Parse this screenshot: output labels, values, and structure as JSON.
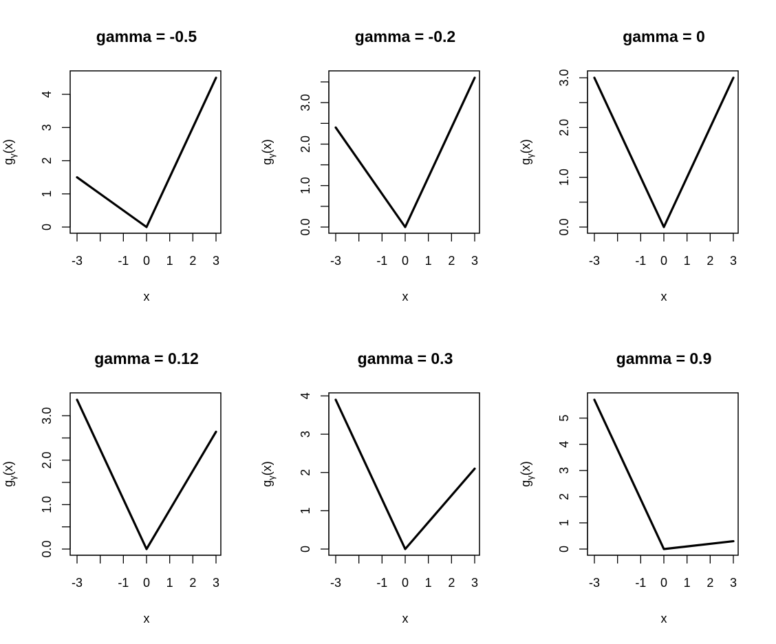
{
  "chart_data": [
    {
      "type": "line",
      "title": "gamma =  -0.5",
      "xlabel": "x",
      "ylabel": {
        "base": "g",
        "sub": "γ",
        "rest": "(x)"
      },
      "x": [
        -3,
        0,
        3
      ],
      "y": [
        1.5,
        0,
        4.5
      ],
      "x_ticks": [
        -3,
        -2,
        -1,
        0,
        1,
        2,
        3
      ],
      "x_tick_labels": [
        "-3",
        "",
        "-1",
        "0",
        "1",
        "2",
        "3"
      ],
      "y_ticks": [
        0,
        1,
        2,
        3,
        4
      ],
      "y_tick_labels": [
        "0",
        "1",
        "2",
        "3",
        "4"
      ],
      "ylim": [
        0,
        4.5
      ],
      "xlim": [
        -3,
        3
      ]
    },
    {
      "type": "line",
      "title": "gamma =  -0.2",
      "xlabel": "x",
      "ylabel": {
        "base": "g",
        "sub": "γ",
        "rest": "(x)"
      },
      "x": [
        -3,
        0,
        3
      ],
      "y": [
        2.4,
        0,
        3.6
      ],
      "x_ticks": [
        -3,
        -2,
        -1,
        0,
        1,
        2,
        3
      ],
      "x_tick_labels": [
        "-3",
        "",
        "-1",
        "0",
        "1",
        "2",
        "3"
      ],
      "y_ticks": [
        0,
        0.5,
        1,
        1.5,
        2,
        2.5,
        3,
        3.5
      ],
      "y_tick_labels": [
        "0.0",
        "",
        "1.0",
        "",
        "2.0",
        "",
        "3.0",
        ""
      ],
      "ylim": [
        0,
        3.6
      ],
      "xlim": [
        -3,
        3
      ]
    },
    {
      "type": "line",
      "title": "gamma =  0",
      "xlabel": "x",
      "ylabel": {
        "base": "g",
        "sub": "γ",
        "rest": "(x)"
      },
      "x": [
        -3,
        0,
        3
      ],
      "y": [
        3,
        0,
        3
      ],
      "x_ticks": [
        -3,
        -2,
        -1,
        0,
        1,
        2,
        3
      ],
      "x_tick_labels": [
        "-3",
        "",
        "-1",
        "0",
        "1",
        "2",
        "3"
      ],
      "y_ticks": [
        0,
        0.5,
        1,
        1.5,
        2,
        2.5,
        3
      ],
      "y_tick_labels": [
        "0.0",
        "",
        "1.0",
        "",
        "2.0",
        "",
        "3.0"
      ],
      "ylim": [
        0,
        3
      ],
      "xlim": [
        -3,
        3
      ]
    },
    {
      "type": "line",
      "title": "gamma =  0.12",
      "xlabel": "x",
      "ylabel": {
        "base": "g",
        "sub": "γ",
        "rest": "(x)"
      },
      "x": [
        -3,
        0,
        3
      ],
      "y": [
        3.36,
        0,
        2.64
      ],
      "x_ticks": [
        -3,
        -2,
        -1,
        0,
        1,
        2,
        3
      ],
      "x_tick_labels": [
        "-3",
        "",
        "-1",
        "0",
        "1",
        "2",
        "3"
      ],
      "y_ticks": [
        0,
        0.5,
        1,
        1.5,
        2,
        2.5,
        3
      ],
      "y_tick_labels": [
        "0.0",
        "",
        "1.0",
        "",
        "2.0",
        "",
        "3.0"
      ],
      "ylim": [
        0,
        3.36
      ],
      "xlim": [
        -3,
        3
      ]
    },
    {
      "type": "line",
      "title": "gamma =  0.3",
      "xlabel": "x",
      "ylabel": {
        "base": "g",
        "sub": "γ",
        "rest": "(x)"
      },
      "x": [
        -3,
        0,
        3
      ],
      "y": [
        3.9,
        0,
        2.1
      ],
      "x_ticks": [
        -3,
        -2,
        -1,
        0,
        1,
        2,
        3
      ],
      "x_tick_labels": [
        "-3",
        "",
        "-1",
        "0",
        "1",
        "2",
        "3"
      ],
      "y_ticks": [
        0,
        1,
        2,
        3,
        4
      ],
      "y_tick_labels": [
        "0",
        "1",
        "2",
        "3",
        "4"
      ],
      "ylim": [
        0,
        3.9
      ],
      "xlim": [
        -3,
        3
      ]
    },
    {
      "type": "line",
      "title": "gamma =  0.9",
      "xlabel": "x",
      "ylabel": {
        "base": "g",
        "sub": "γ",
        "rest": "(x)"
      },
      "x": [
        -3,
        0,
        3
      ],
      "y": [
        5.7,
        0,
        0.3
      ],
      "x_ticks": [
        -3,
        -2,
        -1,
        0,
        1,
        2,
        3
      ],
      "x_tick_labels": [
        "-3",
        "",
        "-1",
        "0",
        "1",
        "2",
        "3"
      ],
      "y_ticks": [
        0,
        1,
        2,
        3,
        4,
        5
      ],
      "y_tick_labels": [
        "0",
        "1",
        "2",
        "3",
        "4",
        "5"
      ],
      "ylim": [
        0,
        5.7
      ],
      "xlim": [
        -3,
        3
      ]
    }
  ]
}
